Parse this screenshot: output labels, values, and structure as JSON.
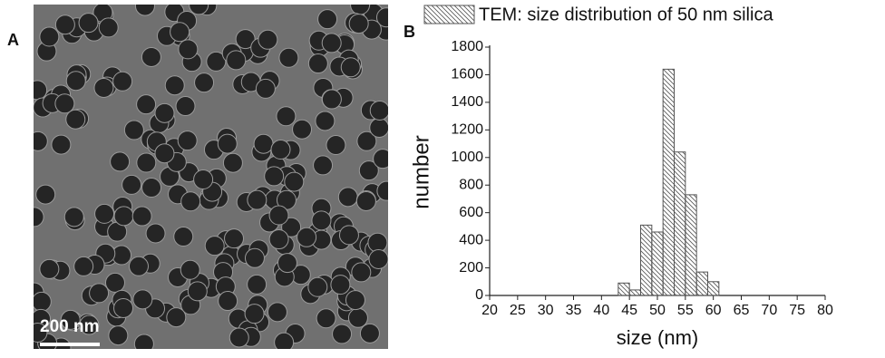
{
  "panel_labels": [
    "A",
    "B"
  ],
  "scale_bar": "200 nm",
  "chart_data": {
    "type": "histogram",
    "series": [
      {
        "name": "TEM: size distribution of 50 nm silica",
        "color": "#555555",
        "bins": [
          43,
          45,
          47,
          49,
          51,
          53,
          55,
          57,
          59,
          61
        ],
        "values": [
          90,
          40,
          510,
          460,
          1640,
          1040,
          730,
          170,
          100
        ]
      }
    ],
    "x_label": "size (nm)",
    "y_label": "number",
    "xlim": [
      20,
      80
    ],
    "xticks": [
      20,
      25,
      30,
      35,
      40,
      45,
      50,
      55,
      60,
      65,
      70,
      75,
      80
    ],
    "ylim": [
      0,
      1800
    ],
    "yticks": [
      0,
      200,
      400,
      600,
      800,
      1000,
      1200,
      1400,
      1600,
      1800
    ],
    "legend": "top"
  }
}
